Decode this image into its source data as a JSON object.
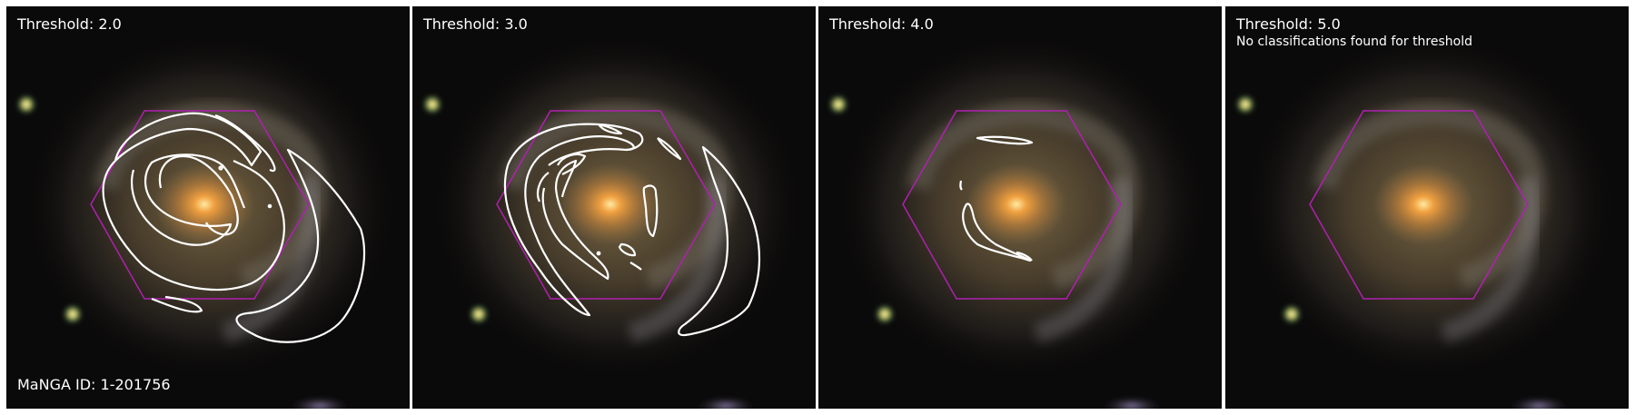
{
  "figure": {
    "manga_id_label": "MaNGA ID: 1-201756",
    "colors": {
      "contour": "#ffffff",
      "hexagon": "#b020b0",
      "text": "#ffffff",
      "background": "#0b0a0a"
    },
    "panels": [
      {
        "threshold_label": "Threshold: 2.0",
        "note": "",
        "has_contours": true
      },
      {
        "threshold_label": "Threshold: 3.0",
        "note": "",
        "has_contours": true
      },
      {
        "threshold_label": "Threshold: 4.0",
        "note": "",
        "has_contours": true
      },
      {
        "threshold_label": "Threshold: 5.0",
        "note": "No classifications found for threshold",
        "has_contours": false
      }
    ]
  }
}
